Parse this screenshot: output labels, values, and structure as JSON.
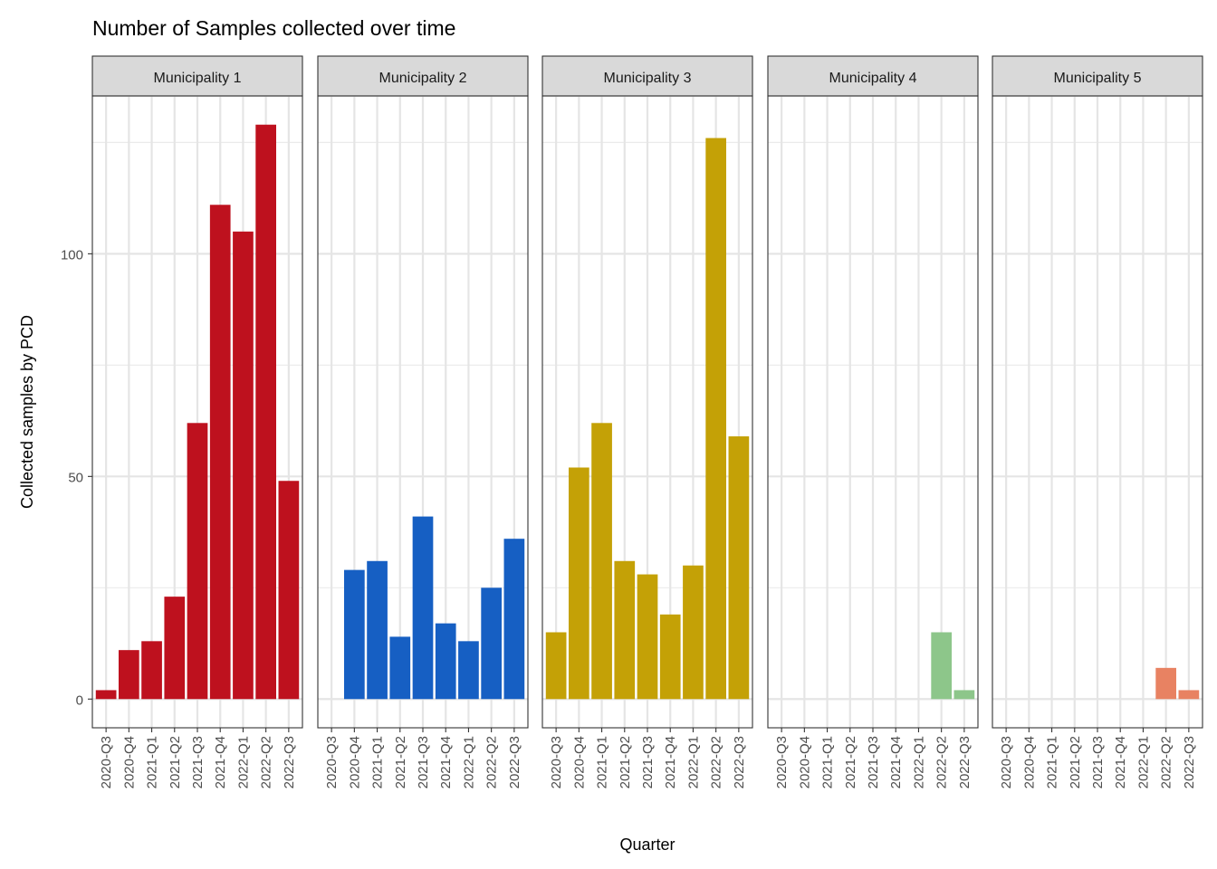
{
  "chart_data": {
    "type": "bar",
    "title": "Number of Samples collected over time",
    "xlabel": "Quarter",
    "ylabel": "Collected samples by PCD",
    "ylim": [
      -6.45,
      135.45
    ],
    "yticks": [
      0,
      50,
      100
    ],
    "grid": true,
    "legend": "none",
    "categories": [
      "2020-Q3",
      "2020-Q4",
      "2021-Q1",
      "2021-Q2",
      "2021-Q3",
      "2021-Q4",
      "2022-Q1",
      "2022-Q2",
      "2022-Q3"
    ],
    "facets": [
      {
        "name": "Municipality 1",
        "color": "#BE111E",
        "values": [
          2,
          11,
          13,
          23,
          62,
          111,
          105,
          129,
          49
        ]
      },
      {
        "name": "Municipality 2",
        "color": "#165FC3",
        "values": [
          0,
          29,
          31,
          14,
          41,
          17,
          13,
          25,
          36
        ]
      },
      {
        "name": "Municipality 3",
        "color": "#C4A106",
        "values": [
          15,
          52,
          62,
          31,
          28,
          19,
          30,
          126,
          59
        ]
      },
      {
        "name": "Municipality 4",
        "color": "#8DC68A",
        "values": [
          0,
          0,
          0,
          0,
          0,
          0,
          0,
          15,
          2
        ]
      },
      {
        "name": "Municipality 5",
        "color": "#E88262",
        "values": [
          0,
          0,
          0,
          0,
          0,
          0,
          0,
          7,
          2
        ]
      }
    ]
  }
}
